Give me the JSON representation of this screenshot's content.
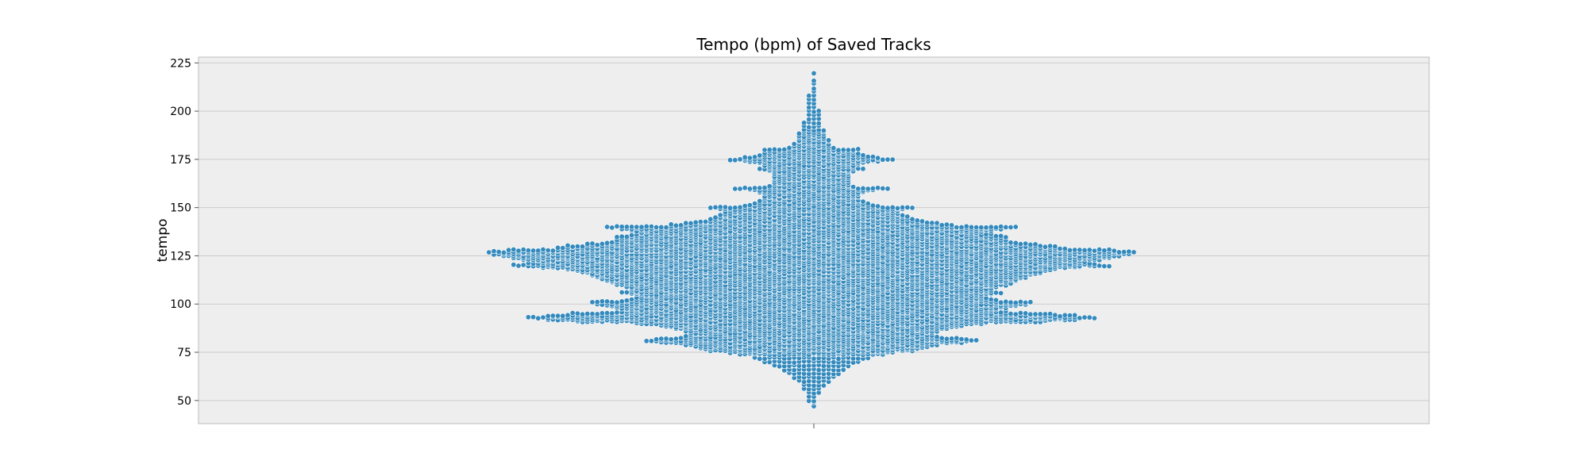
{
  "chart_data": {
    "type": "swarm",
    "title": "Tempo (bpm) of Saved Tracks",
    "xlabel": "",
    "ylabel": "tempo",
    "ylim": [
      38,
      228
    ],
    "yticks": [
      50,
      75,
      100,
      125,
      150,
      175,
      200,
      225
    ],
    "grid": true,
    "legend": "none",
    "series": [
      {
        "values_summary": "single distribution of track tempos; range approx 47–220 bpm, densest clusters near 120–128, 92–95 and 80–82 bpm",
        "histogram_bin_size": 1,
        "histogram": [
          [
            47,
            1
          ],
          [
            49,
            1
          ],
          [
            50,
            2
          ],
          [
            52,
            2
          ],
          [
            54,
            3
          ],
          [
            56,
            4
          ],
          [
            58,
            5
          ],
          [
            60,
            7
          ],
          [
            62,
            9
          ],
          [
            64,
            11
          ],
          [
            66,
            13
          ],
          [
            68,
            16
          ],
          [
            70,
            20
          ],
          [
            72,
            24
          ],
          [
            74,
            30
          ],
          [
            75,
            34
          ],
          [
            76,
            42
          ],
          [
            77,
            46
          ],
          [
            78,
            48
          ],
          [
            79,
            52
          ],
          [
            80,
            62
          ],
          [
            81,
            68
          ],
          [
            82,
            64
          ],
          [
            83,
            52
          ],
          [
            84,
            50
          ],
          [
            85,
            50
          ],
          [
            86,
            52
          ],
          [
            87,
            56
          ],
          [
            88,
            60
          ],
          [
            89,
            62
          ],
          [
            90,
            72
          ],
          [
            91,
            96
          ],
          [
            92,
            108
          ],
          [
            93,
            116
          ],
          [
            94,
            108
          ],
          [
            95,
            98
          ],
          [
            96,
            80
          ],
          [
            97,
            76
          ],
          [
            98,
            80
          ],
          [
            99,
            84
          ],
          [
            100,
            88
          ],
          [
            101,
            90
          ],
          [
            102,
            76
          ],
          [
            103,
            72
          ],
          [
            104,
            70
          ],
          [
            105,
            74
          ],
          [
            106,
            78
          ],
          [
            107,
            74
          ],
          [
            108,
            74
          ],
          [
            109,
            76
          ],
          [
            110,
            80
          ],
          [
            111,
            82
          ],
          [
            112,
            84
          ],
          [
            113,
            86
          ],
          [
            114,
            88
          ],
          [
            115,
            90
          ],
          [
            116,
            94
          ],
          [
            117,
            96
          ],
          [
            118,
            100
          ],
          [
            119,
            110
          ],
          [
            120,
            122
          ],
          [
            121,
            116
          ],
          [
            122,
            112
          ],
          [
            123,
            118
          ],
          [
            124,
            122
          ],
          [
            125,
            126
          ],
          [
            126,
            130
          ],
          [
            127,
            132
          ],
          [
            128,
            124
          ],
          [
            129,
            104
          ],
          [
            130,
            100
          ],
          [
            131,
            92
          ],
          [
            132,
            84
          ],
          [
            133,
            80
          ],
          [
            134,
            78
          ],
          [
            135,
            80
          ],
          [
            136,
            74
          ],
          [
            137,
            70
          ],
          [
            138,
            74
          ],
          [
            139,
            78
          ],
          [
            140,
            84
          ],
          [
            141,
            58
          ],
          [
            142,
            52
          ],
          [
            143,
            46
          ],
          [
            144,
            42
          ],
          [
            145,
            40
          ],
          [
            146,
            38
          ],
          [
            147,
            36
          ],
          [
            148,
            36
          ],
          [
            149,
            38
          ],
          [
            150,
            42
          ],
          [
            151,
            28
          ],
          [
            152,
            24
          ],
          [
            153,
            22
          ],
          [
            154,
            20
          ],
          [
            155,
            20
          ],
          [
            156,
            20
          ],
          [
            157,
            20
          ],
          [
            158,
            22
          ],
          [
            159,
            26
          ],
          [
            160,
            32
          ],
          [
            161,
            18
          ],
          [
            162,
            16
          ],
          [
            163,
            16
          ],
          [
            164,
            16
          ],
          [
            165,
            16
          ],
          [
            166,
            16
          ],
          [
            167,
            16
          ],
          [
            168,
            16
          ],
          [
            169,
            18
          ],
          [
            170,
            22
          ],
          [
            171,
            18
          ],
          [
            172,
            20
          ],
          [
            173,
            22
          ],
          [
            174,
            28
          ],
          [
            175,
            34
          ],
          [
            176,
            28
          ],
          [
            177,
            22
          ],
          [
            178,
            20
          ],
          [
            179,
            18
          ],
          [
            180,
            20
          ],
          [
            181,
            10
          ],
          [
            182,
            8
          ],
          [
            183,
            8
          ],
          [
            184,
            7
          ],
          [
            185,
            7
          ],
          [
            186,
            6
          ],
          [
            187,
            6
          ],
          [
            188,
            6
          ],
          [
            189,
            5
          ],
          [
            190,
            5
          ],
          [
            192,
            4
          ],
          [
            194,
            4
          ],
          [
            196,
            3
          ],
          [
            198,
            3
          ],
          [
            200,
            3
          ],
          [
            202,
            2
          ],
          [
            204,
            2
          ],
          [
            206,
            2
          ],
          [
            208,
            2
          ],
          [
            210,
            1
          ],
          [
            212,
            1
          ],
          [
            214,
            1
          ],
          [
            216,
            1
          ],
          [
            220,
            1
          ]
        ]
      }
    ],
    "colors": {
      "point_fill": "#348abd",
      "point_edge": "#ffffff",
      "plot_background": "#eeeeee",
      "grid": "#cbcbcb",
      "frame": "#bcbcbc"
    }
  }
}
